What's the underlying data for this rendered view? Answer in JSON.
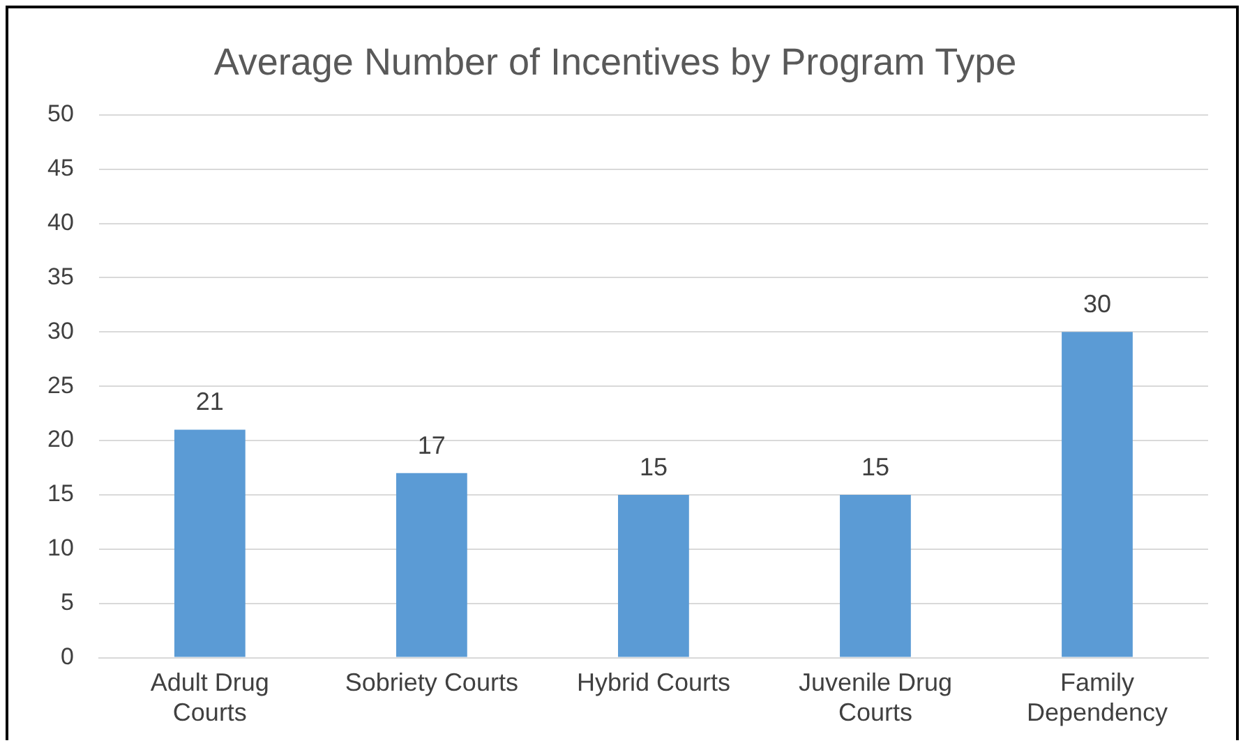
{
  "chart_data": {
    "type": "bar",
    "title": "Average Number of Incentives by Program Type",
    "categories": [
      "Adult Drug Courts",
      "Sobriety Courts",
      "Hybrid Courts",
      "Juvenile Drug Courts",
      "Family Dependency"
    ],
    "values": [
      21,
      17,
      15,
      15,
      30
    ],
    "color": "#5b9bd5",
    "ylim": [
      0,
      50
    ],
    "yticks": [
      0,
      5,
      10,
      15,
      20,
      25,
      30,
      35,
      40,
      45,
      50
    ],
    "grid": "y",
    "data_labels": true,
    "legend": false
  }
}
